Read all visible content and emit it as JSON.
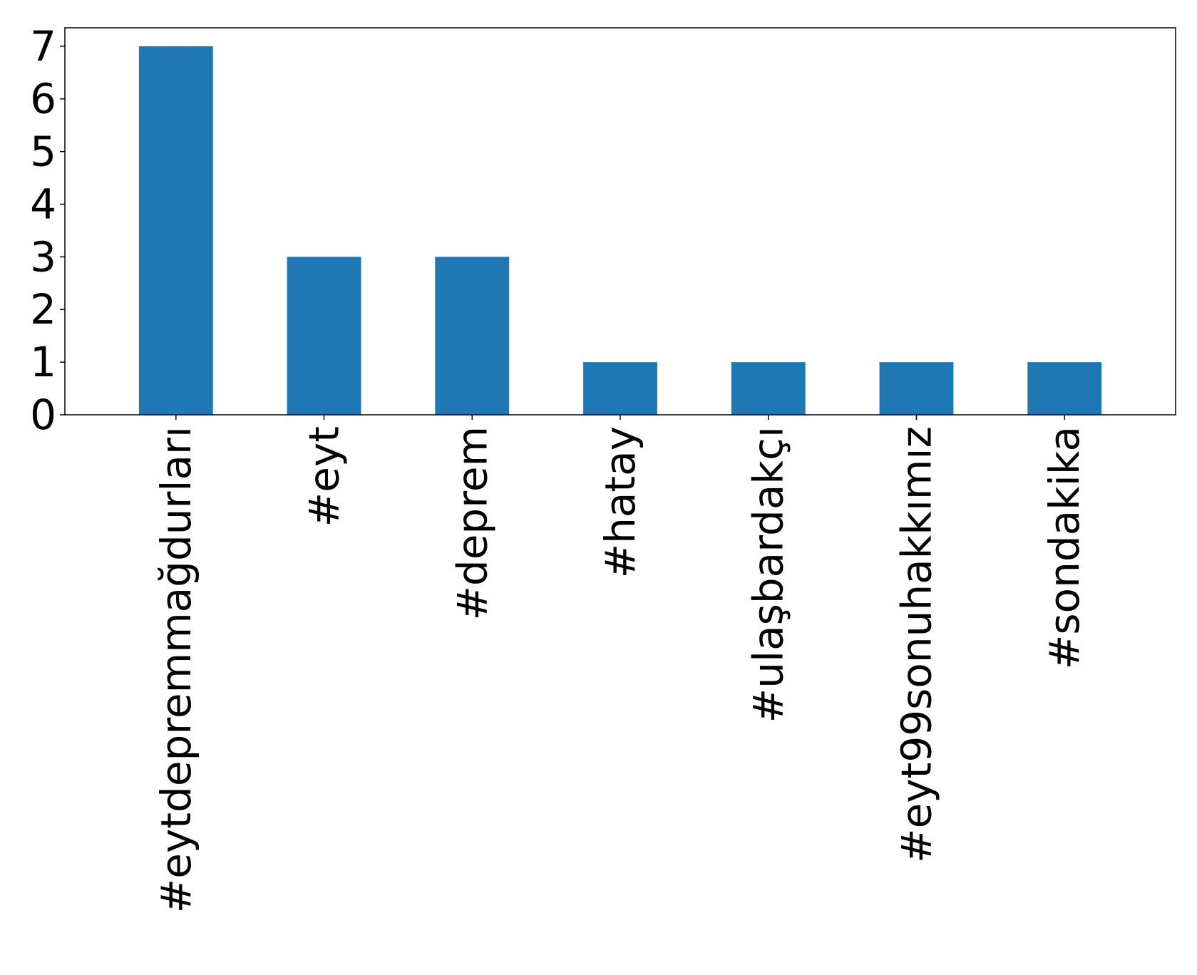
{
  "chart_data": {
    "type": "bar",
    "title": "",
    "xlabel": "",
    "ylabel": "",
    "categories": [
      "#eytdepremmağdurları",
      "#eyt",
      "#deprem",
      "#hatay",
      "#ulaşbardakçı",
      "#eyt99sonuhakkımız",
      "#sondakika"
    ],
    "values": [
      7,
      3,
      3,
      1,
      1,
      1,
      1
    ],
    "ylim": [
      0,
      7.35
    ],
    "yticks": [
      "0",
      "1",
      "2",
      "3",
      "4",
      "5",
      "6",
      "7"
    ],
    "bar_color": "#1f77b4",
    "grid": false,
    "legend": "none",
    "xtick_rotation": "vertical"
  }
}
